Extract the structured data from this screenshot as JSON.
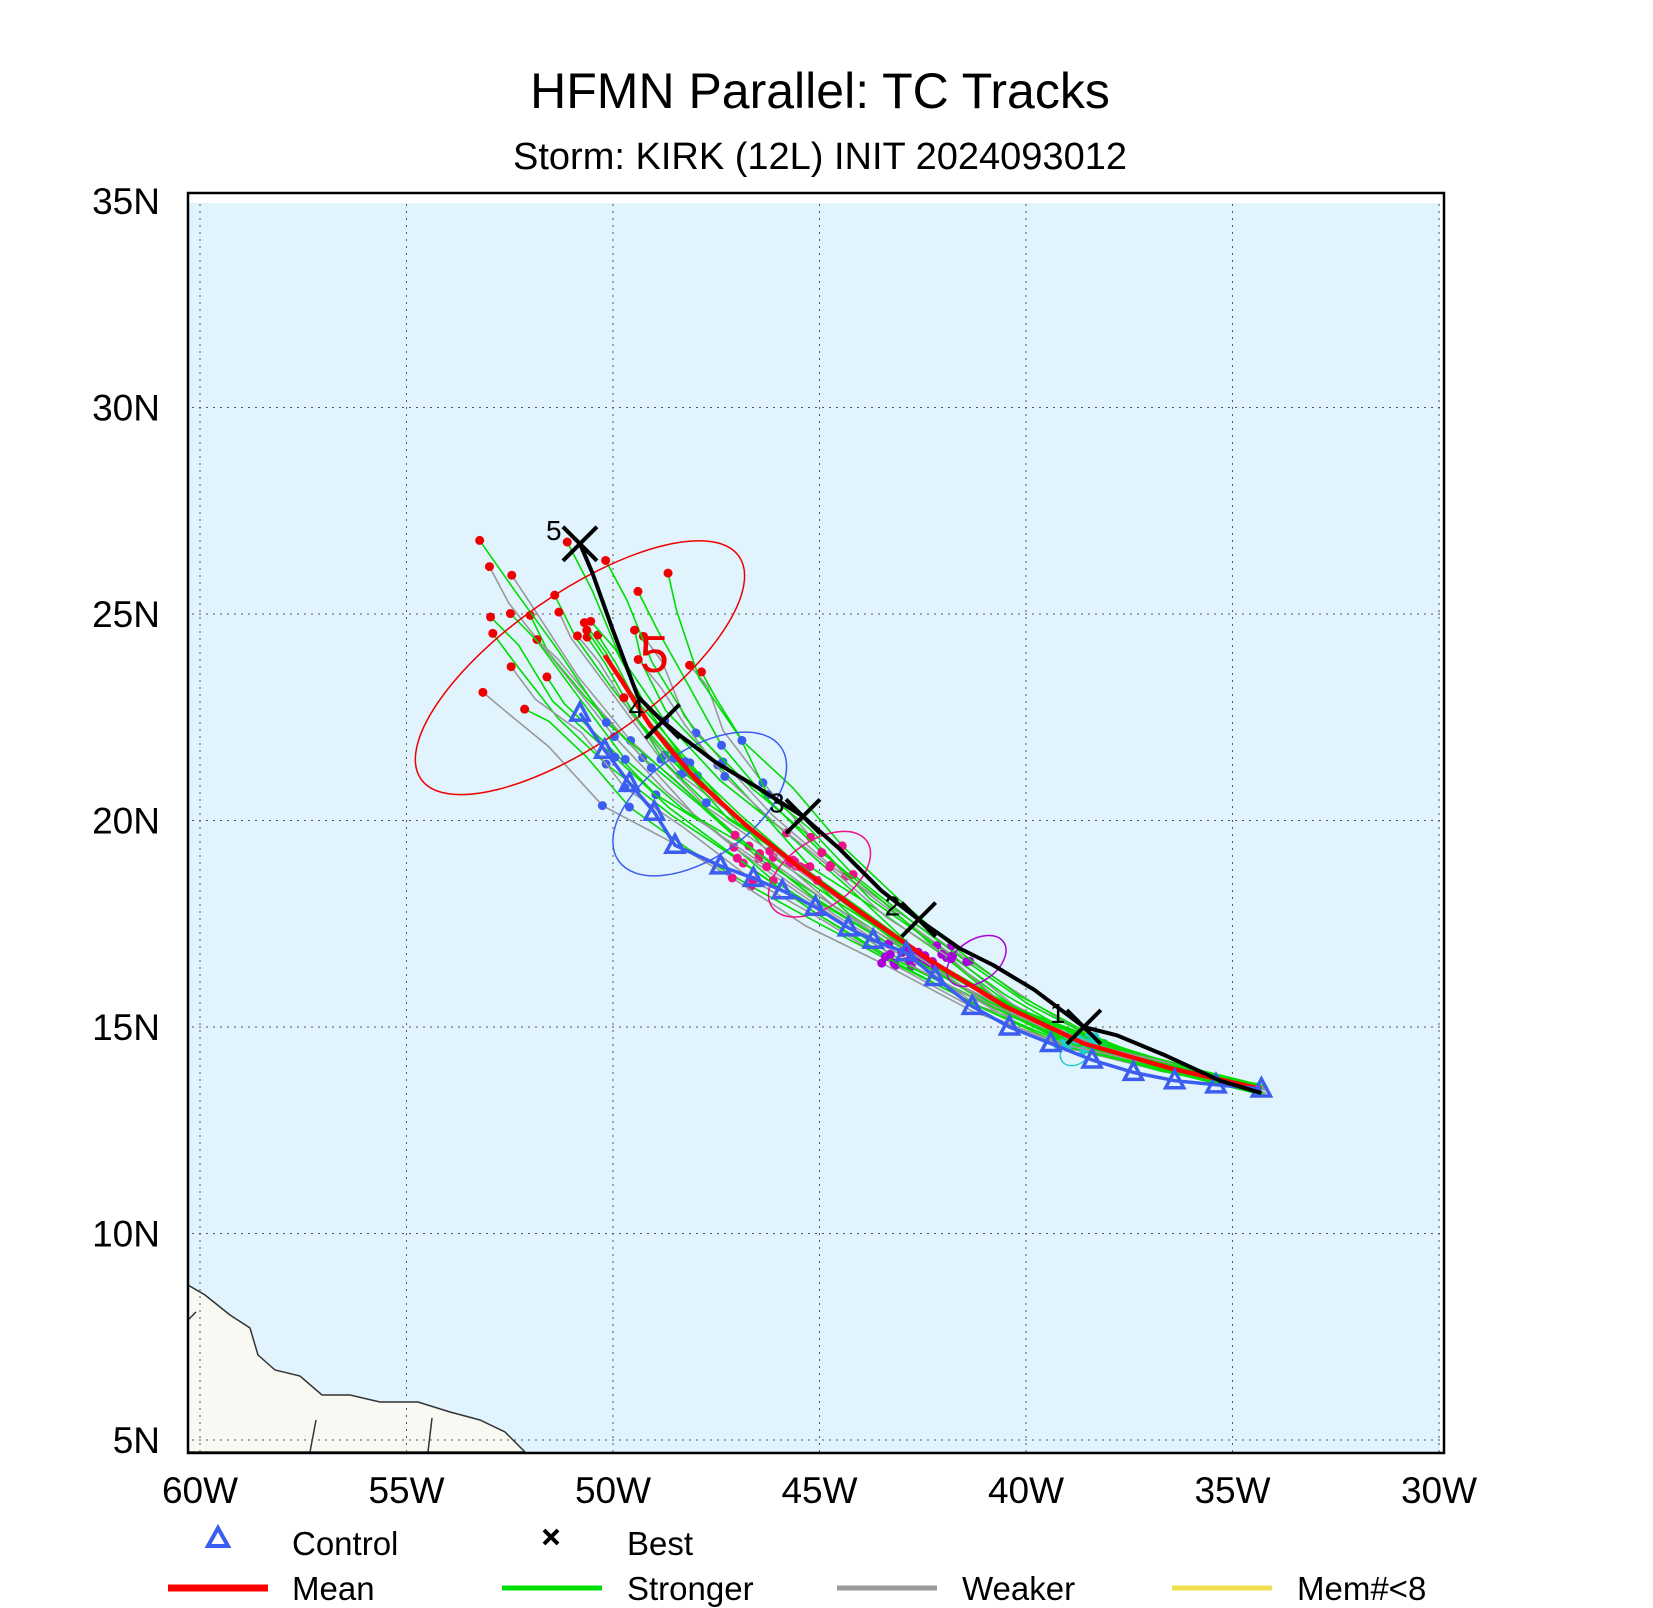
{
  "title": "HFMN Parallel: TC Tracks",
  "subtitle": "Storm: KIRK (12L) INIT 2024093012",
  "colors": {
    "ocean": "#e1f3fd",
    "land": "#f7f9f2",
    "best": "#000000",
    "control": "#3c5ef0",
    "mean": "#ff0000",
    "stronger": "#00dd00",
    "weaker": "#999999",
    "mem_lt8": "#f0e050",
    "day1": "#22cccc",
    "day2": "#aa00dd",
    "day3": "#ee1188",
    "day4": "#3c5ef0",
    "day5": "#ee0000"
  },
  "map": {
    "lon_range": [
      -60,
      -30
    ],
    "lat_range": [
      5,
      35
    ],
    "x_ticks": [
      {
        "lon": -60,
        "label": "60W"
      },
      {
        "lon": -55,
        "label": "55W"
      },
      {
        "lon": -50,
        "label": "50W"
      },
      {
        "lon": -45,
        "label": "45W"
      },
      {
        "lon": -40,
        "label": "40W"
      },
      {
        "lon": -35,
        "label": "35W"
      },
      {
        "lon": -30,
        "label": "30W"
      }
    ],
    "y_ticks": [
      {
        "lat": 35,
        "label": "35N"
      },
      {
        "lat": 30,
        "label": "30N"
      },
      {
        "lat": 25,
        "label": "25N"
      },
      {
        "lat": 20,
        "label": "20N"
      },
      {
        "lat": 15,
        "label": "15N"
      },
      {
        "lat": 10,
        "label": "10N"
      },
      {
        "lat": 5,
        "label": "5N"
      }
    ],
    "grid": "dotted"
  },
  "chart_data": {
    "type": "map",
    "best_track": {
      "points": [
        [
          -34.3,
          13.4
        ],
        [
          -35.3,
          13.7
        ],
        [
          -36.6,
          14.3
        ],
        [
          -37.8,
          14.8
        ],
        [
          -38.6,
          15.0
        ],
        [
          -39.8,
          15.9
        ],
        [
          -40.8,
          16.5
        ],
        [
          -41.6,
          16.9
        ],
        [
          -42.6,
          17.6
        ],
        [
          -43.5,
          18.3
        ],
        [
          -44.5,
          19.3
        ],
        [
          -45.4,
          20.1
        ],
        [
          -46.5,
          20.8
        ],
        [
          -47.5,
          21.4
        ],
        [
          -48.3,
          22.0
        ],
        [
          -48.8,
          22.4
        ],
        [
          -49.4,
          23.0
        ],
        [
          -50.0,
          24.6
        ],
        [
          -50.5,
          26.0
        ],
        [
          -50.8,
          26.7
        ]
      ],
      "day_marks": [
        {
          "label": "1",
          "lon": -38.6,
          "lat": 15.0
        },
        {
          "label": "2",
          "lon": -42.6,
          "lat": 17.6
        },
        {
          "label": "3",
          "lon": -45.4,
          "lat": 20.1
        },
        {
          "label": "4",
          "lon": -48.8,
          "lat": 22.4
        },
        {
          "label": "5",
          "lon": -50.8,
          "lat": 26.7
        }
      ]
    },
    "control_track": [
      [
        -34.3,
        13.5
      ],
      [
        -35.4,
        13.6
      ],
      [
        -36.4,
        13.7
      ],
      [
        -37.4,
        13.9
      ],
      [
        -38.4,
        14.2
      ],
      [
        -39.4,
        14.6
      ],
      [
        -40.4,
        15.0
      ],
      [
        -41.3,
        15.5
      ],
      [
        -42.2,
        16.2
      ],
      [
        -42.9,
        16.8
      ],
      [
        -43.7,
        17.1
      ],
      [
        -44.3,
        17.4
      ],
      [
        -45.1,
        17.9
      ],
      [
        -45.9,
        18.3
      ],
      [
        -46.6,
        18.6
      ],
      [
        -47.4,
        18.9
      ],
      [
        -48.5,
        19.4
      ],
      [
        -49.0,
        20.2
      ],
      [
        -49.6,
        20.9
      ],
      [
        -50.2,
        21.7
      ],
      [
        -50.8,
        22.6
      ]
    ],
    "mean_track": [
      [
        -34.3,
        13.5
      ],
      [
        -36.5,
        14.0
      ],
      [
        -38.6,
        14.6
      ],
      [
        -40.5,
        15.5
      ],
      [
        -42.3,
        16.6
      ],
      [
        -43.9,
        17.7
      ],
      [
        -45.4,
        18.8
      ],
      [
        -46.8,
        19.9
      ],
      [
        -48.0,
        21.0
      ],
      [
        -49.1,
        22.3
      ],
      [
        -49.8,
        23.4
      ],
      [
        -50.2,
        24.0
      ]
    ],
    "uncertainty_ellipses": [
      {
        "day": 1,
        "lon": -38.8,
        "lat": 14.4,
        "rlon": 0.4,
        "rlat": 0.3,
        "color": "#22cccc"
      },
      {
        "day": 2,
        "lon": -41.2,
        "lat": 16.6,
        "rlon": 0.8,
        "rlat": 0.5,
        "color": "#aa00dd"
      },
      {
        "day": 3,
        "lon": -45.0,
        "lat": 18.7,
        "rlon": 1.4,
        "rlat": 0.8,
        "color": "#ee1188"
      },
      {
        "day": 4,
        "lon": -47.9,
        "lat": 20.4,
        "rlon": 2.4,
        "rlat": 1.3,
        "color": "#3c5ef0"
      },
      {
        "day": 5,
        "lon": -50.8,
        "lat": 23.7,
        "rlon": 4.7,
        "rlat": 1.8,
        "color": "#ee0000"
      }
    ],
    "mean_day_labels": [
      {
        "label": "5",
        "lon": -49.0,
        "lat": 23.6,
        "color": "#ee0000"
      }
    ]
  },
  "legend": [
    {
      "label": "Control",
      "symbol": "triangle",
      "color": "#3c5ef0"
    },
    {
      "label": "Best",
      "symbol": "cross",
      "color": "#000000"
    },
    {
      "label": "Mean",
      "symbol": "line",
      "color": "#ff0000"
    },
    {
      "label": "Stronger",
      "symbol": "line",
      "color": "#00dd00"
    },
    {
      "label": "Weaker",
      "symbol": "line",
      "color": "#999999"
    },
    {
      "label": "Mem#<8",
      "symbol": "line",
      "color": "#f0e050"
    }
  ]
}
